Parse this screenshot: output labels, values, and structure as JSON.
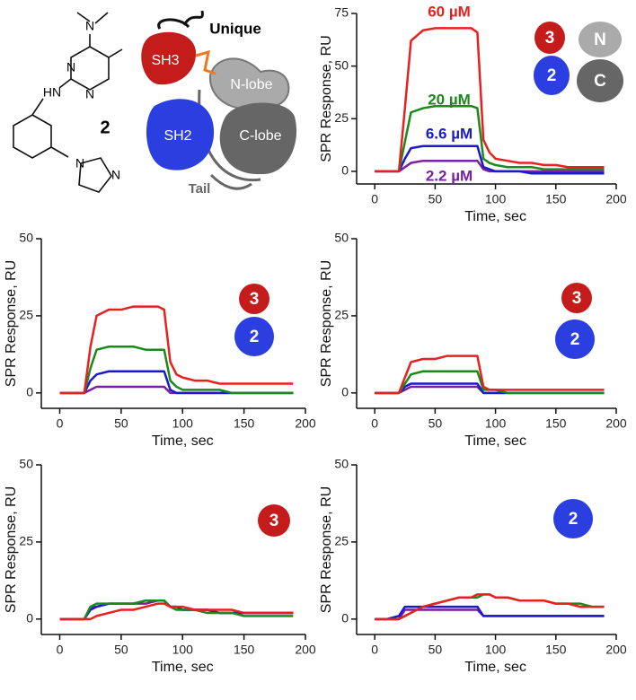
{
  "structure": {
    "atoms": [
      "N",
      "N",
      "N",
      "HN",
      "N",
      "N"
    ],
    "compound": "2"
  },
  "schematic": {
    "labels": [
      "Unique",
      "SH3",
      "N-lobe",
      "SH2",
      "C-lobe",
      "Tail"
    ]
  },
  "chart_data": [
    {
      "type": "line",
      "xlabel": "Time, sec",
      "ylabel": "SPR Response, RU",
      "x": [
        0,
        10,
        20,
        25,
        30,
        40,
        50,
        60,
        70,
        80,
        85,
        90,
        95,
        100,
        110,
        120,
        130,
        140,
        150,
        160,
        170,
        180,
        190
      ],
      "xlim": [
        -15,
        200
      ],
      "xticks": [
        0,
        50,
        100,
        150,
        200
      ],
      "ylim": [
        -6,
        75
      ],
      "yticks": [
        0,
        25,
        50,
        75
      ],
      "inset": [
        "3",
        "N",
        "2",
        "C"
      ],
      "series": [
        {
          "name": "60 µM",
          "color": "#e8201f",
          "values": [
            0,
            0,
            0,
            30,
            62,
            67,
            68,
            68,
            68,
            68,
            66,
            15,
            9,
            6,
            5,
            4,
            4,
            3,
            3,
            2,
            2,
            2,
            2
          ]
        },
        {
          "name": "20 µM",
          "color": "#1a8a1a",
          "values": [
            0,
            0,
            0,
            14,
            28,
            30,
            31,
            31,
            31,
            31,
            30,
            6,
            4,
            3,
            2,
            2,
            2,
            1,
            1,
            1,
            1,
            1,
            1
          ]
        },
        {
          "name": "6.6 µM",
          "color": "#1a1acc",
          "values": [
            0,
            0,
            0,
            6,
            11,
            12,
            12,
            12,
            12,
            12,
            12,
            2,
            1,
            0,
            0,
            0,
            -1,
            -1,
            -1,
            -1,
            -1,
            -1,
            -1
          ]
        },
        {
          "name": "2.2 µM",
          "color": "#7a1fa0",
          "values": [
            0,
            0,
            0,
            2,
            4,
            5,
            5,
            5,
            5,
            5,
            5,
            1,
            0,
            0,
            0,
            0,
            0,
            0,
            0,
            0,
            0,
            0,
            0
          ]
        }
      ]
    },
    {
      "type": "line",
      "xlabel": "Time, sec",
      "ylabel": "SPR Response, RU",
      "x": [
        0,
        10,
        20,
        25,
        30,
        40,
        50,
        60,
        70,
        80,
        85,
        90,
        95,
        100,
        110,
        120,
        130,
        140,
        150,
        160,
        170,
        180,
        190
      ],
      "xlim": [
        -15,
        200
      ],
      "xticks": [
        0,
        50,
        100,
        150,
        200
      ],
      "ylim": [
        -5,
        50
      ],
      "yticks": [
        0,
        25,
        50
      ],
      "inset": [
        "3",
        "2"
      ],
      "series": [
        {
          "color": "#e8201f",
          "values": [
            0,
            0,
            0,
            15,
            25,
            27,
            27,
            28,
            28,
            28,
            27,
            10,
            6,
            5,
            4,
            4,
            3,
            3,
            3,
            3,
            3,
            3,
            3
          ]
        },
        {
          "color": "#1a8a1a",
          "values": [
            0,
            0,
            0,
            8,
            14,
            15,
            15,
            15,
            14,
            14,
            14,
            4,
            2,
            1,
            1,
            1,
            1,
            0,
            0,
            0,
            0,
            0,
            0
          ]
        },
        {
          "color": "#1a1acc",
          "values": [
            0,
            0,
            0,
            4,
            6,
            7,
            7,
            7,
            7,
            7,
            7,
            1,
            0,
            0,
            0,
            0,
            0,
            0,
            0,
            0,
            0,
            0,
            0
          ]
        },
        {
          "color": "#7a1fa0",
          "values": [
            0,
            0,
            0,
            1,
            2,
            2,
            2,
            2,
            2,
            2,
            2,
            0,
            0,
            0,
            0,
            0,
            0,
            0,
            0,
            0,
            0,
            0,
            0
          ]
        }
      ]
    },
    {
      "type": "line",
      "xlabel": "Time, sec",
      "ylabel": "SPR Response, RU",
      "x": [
        0,
        10,
        20,
        25,
        30,
        40,
        50,
        60,
        70,
        80,
        85,
        90,
        95,
        100,
        110,
        120,
        130,
        140,
        150,
        160,
        170,
        180,
        190
      ],
      "xlim": [
        -15,
        200
      ],
      "xticks": [
        0,
        50,
        100,
        150,
        200
      ],
      "ylim": [
        -5,
        50
      ],
      "yticks": [
        0,
        25,
        50
      ],
      "inset": [
        "3",
        "2"
      ],
      "series": [
        {
          "color": "#e8201f",
          "values": [
            0,
            0,
            0,
            5,
            10,
            11,
            11,
            12,
            12,
            12,
            12,
            2,
            1,
            1,
            1,
            1,
            1,
            1,
            1,
            1,
            1,
            1,
            1
          ]
        },
        {
          "color": "#1a8a1a",
          "values": [
            0,
            0,
            0,
            3,
            6,
            7,
            7,
            7,
            7,
            7,
            7,
            1,
            1,
            1,
            0,
            0,
            0,
            0,
            0,
            0,
            0,
            0,
            0
          ]
        },
        {
          "color": "#1a1acc",
          "values": [
            0,
            0,
            0,
            2,
            3,
            3,
            3,
            3,
            3,
            3,
            3,
            0,
            0,
            0,
            0,
            0,
            0,
            0,
            0,
            0,
            0,
            0,
            0
          ]
        },
        {
          "color": "#7a1fa0",
          "values": [
            0,
            0,
            0,
            1,
            2,
            2,
            2,
            2,
            2,
            2,
            2,
            0,
            0,
            0,
            0,
            0,
            0,
            0,
            0,
            0,
            0,
            0,
            0
          ]
        }
      ]
    },
    {
      "type": "line",
      "xlabel": "Time, sec",
      "ylabel": "SPR Response, RU",
      "x": [
        0,
        10,
        20,
        25,
        30,
        40,
        50,
        60,
        70,
        80,
        85,
        90,
        95,
        100,
        110,
        120,
        130,
        140,
        150,
        160,
        170,
        180,
        190
      ],
      "xlim": [
        -15,
        200
      ],
      "xticks": [
        0,
        50,
        100,
        150,
        200
      ],
      "ylim": [
        -5,
        50
      ],
      "yticks": [
        0,
        25,
        50
      ],
      "inset": [
        "3"
      ],
      "series": [
        {
          "color": "#e8201f",
          "values": [
            0,
            0,
            0,
            0,
            1,
            2,
            3,
            3,
            4,
            5,
            5,
            4,
            4,
            4,
            3,
            3,
            3,
            3,
            2,
            2,
            2,
            2,
            2
          ]
        },
        {
          "color": "#1a8a1a",
          "values": [
            0,
            0,
            0,
            4,
            5,
            5,
            5,
            5,
            6,
            6,
            6,
            4,
            3,
            3,
            3,
            2,
            2,
            2,
            1,
            1,
            1,
            1,
            1
          ]
        },
        {
          "color": "#1a1acc",
          "values": [
            0,
            0,
            0,
            3,
            4,
            5,
            5,
            5,
            6,
            6,
            6,
            4,
            4,
            3,
            3,
            3,
            2,
            2,
            2,
            2,
            2,
            2,
            2
          ]
        },
        {
          "color": "#7a1fa0",
          "values": [
            0,
            0,
            0,
            4,
            4,
            5,
            5,
            5,
            5,
            6,
            6,
            4,
            4,
            3,
            3,
            3,
            2,
            2,
            2,
            2,
            2,
            2,
            2
          ]
        }
      ]
    },
    {
      "type": "line",
      "xlabel": "Time, sec",
      "ylabel": "SPR Response, RU",
      "x": [
        0,
        10,
        20,
        25,
        30,
        40,
        50,
        60,
        70,
        80,
        85,
        90,
        95,
        100,
        110,
        120,
        130,
        140,
        150,
        160,
        170,
        180,
        190
      ],
      "xlim": [
        -15,
        200
      ],
      "xticks": [
        0,
        50,
        100,
        150,
        200
      ],
      "ylim": [
        -5,
        50
      ],
      "yticks": [
        0,
        25,
        50
      ],
      "inset": [
        "2"
      ],
      "series": [
        {
          "color": "#e8201f",
          "values": [
            0,
            0,
            0,
            1,
            2,
            4,
            5,
            6,
            7,
            7,
            8,
            8,
            8,
            7,
            7,
            6,
            6,
            6,
            5,
            5,
            4,
            4,
            4
          ]
        },
        {
          "color": "#1a8a1a",
          "values": [
            0,
            0,
            0,
            1,
            2,
            4,
            5,
            6,
            7,
            7,
            7,
            8,
            8,
            7,
            7,
            6,
            6,
            6,
            5,
            5,
            5,
            4,
            4
          ]
        },
        {
          "color": "#1a1acc",
          "values": [
            0,
            0,
            1,
            4,
            4,
            4,
            4,
            4,
            4,
            4,
            4,
            1,
            1,
            1,
            1,
            1,
            1,
            1,
            1,
            1,
            1,
            1,
            1
          ]
        },
        {
          "color": "#7a1fa0",
          "values": [
            0,
            0,
            0,
            3,
            3,
            3,
            3,
            3,
            3,
            3,
            3,
            1,
            1,
            1,
            1,
            1,
            1,
            1,
            1,
            1,
            1,
            1,
            1
          ]
        }
      ]
    }
  ]
}
